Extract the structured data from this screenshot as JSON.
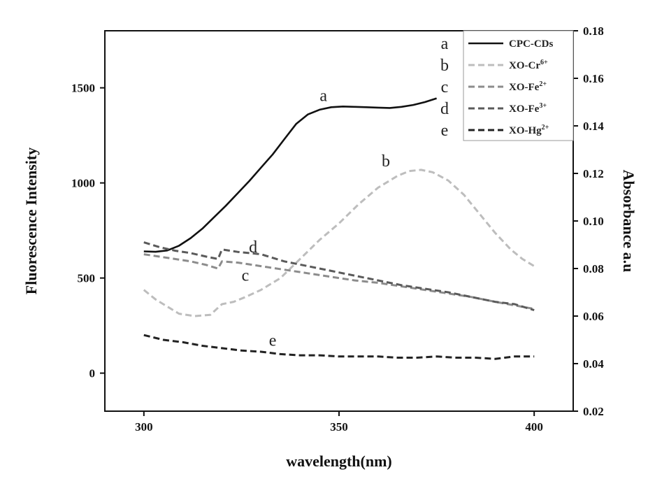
{
  "chart_data": {
    "type": "line",
    "title": "",
    "xlabel": "wavelength(nm)",
    "ylabel_left": "Fluorescence Intensity",
    "ylabel_right": "Absorbance a.u",
    "xlim": [
      290,
      410
    ],
    "ylim_left": [
      -200,
      1800
    ],
    "ylim_right": [
      0.02,
      0.18
    ],
    "x_ticks": [
      300,
      350,
      400
    ],
    "y_ticks_left": [
      0,
      500,
      1000,
      1500
    ],
    "y_ticks_right": [
      "0.02",
      "0.04",
      "0.06",
      "0.08",
      "0.10",
      "0.12",
      "0.14",
      "0.16",
      "0.18"
    ],
    "grid": false,
    "legend_position": "top-right",
    "series": [
      {
        "id": "a",
        "name": "CPC-CDs",
        "axis": "left",
        "style": "solid",
        "color": "#111111",
        "label_pos": [
          346,
          1430
        ],
        "points": [
          [
            300,
            640
          ],
          [
            303,
            638
          ],
          [
            306,
            645
          ],
          [
            309,
            670
          ],
          [
            312,
            710
          ],
          [
            315,
            760
          ],
          [
            318,
            820
          ],
          [
            321,
            880
          ],
          [
            324,
            945
          ],
          [
            327,
            1010
          ],
          [
            330,
            1080
          ],
          [
            333,
            1150
          ],
          [
            336,
            1230
          ],
          [
            339,
            1310
          ],
          [
            342,
            1360
          ],
          [
            345,
            1385
          ],
          [
            348,
            1398
          ],
          [
            351,
            1402
          ],
          [
            354,
            1400
          ],
          [
            357,
            1398
          ],
          [
            360,
            1396
          ],
          [
            363,
            1394
          ],
          [
            366,
            1400
          ],
          [
            369,
            1410
          ],
          [
            372,
            1425
          ],
          [
            375,
            1445
          ]
        ]
      },
      {
        "id": "b",
        "name": "XO-Cr6+",
        "axis": "right",
        "style": "dashed",
        "color": "#bdbdbd",
        "label_pos": [
          362,
          0.123
        ],
        "points": [
          [
            300,
            0.071
          ],
          [
            303,
            0.067
          ],
          [
            306,
            0.064
          ],
          [
            309,
            0.061
          ],
          [
            313,
            0.06
          ],
          [
            317,
            0.0605
          ],
          [
            320,
            0.065
          ],
          [
            323,
            0.066
          ],
          [
            326,
            0.068
          ],
          [
            330,
            0.071
          ],
          [
            335,
            0.076
          ],
          [
            340,
            0.084
          ],
          [
            345,
            0.092
          ],
          [
            350,
            0.099
          ],
          [
            355,
            0.107
          ],
          [
            360,
            0.114
          ],
          [
            365,
            0.119
          ],
          [
            368,
            0.121
          ],
          [
            371,
            0.1215
          ],
          [
            374,
            0.1205
          ],
          [
            378,
            0.117
          ],
          [
            382,
            0.111
          ],
          [
            386,
            0.103
          ],
          [
            390,
            0.095
          ],
          [
            394,
            0.088
          ],
          [
            397,
            0.084
          ],
          [
            400,
            0.081
          ]
        ]
      },
      {
        "id": "c",
        "name": "XO-Fe2+",
        "axis": "right",
        "style": "dashed",
        "color": "#8c8c8c",
        "label_pos": [
          326,
          0.0748
        ],
        "points": [
          [
            300,
            0.086
          ],
          [
            304,
            0.085
          ],
          [
            308,
            0.084
          ],
          [
            312,
            0.083
          ],
          [
            316,
            0.0815
          ],
          [
            319,
            0.08
          ],
          [
            320,
            0.083
          ],
          [
            324,
            0.0825
          ],
          [
            330,
            0.081
          ],
          [
            336,
            0.0795
          ],
          [
            342,
            0.078
          ],
          [
            348,
            0.0765
          ],
          [
            354,
            0.075
          ],
          [
            360,
            0.074
          ],
          [
            366,
            0.0725
          ],
          [
            372,
            0.071
          ],
          [
            378,
            0.0695
          ],
          [
            384,
            0.068
          ],
          [
            390,
            0.066
          ],
          [
            395,
            0.0645
          ],
          [
            400,
            0.063
          ]
        ]
      },
      {
        "id": "d",
        "name": "XO-Fe3+",
        "axis": "right",
        "style": "dashed",
        "color": "#5a5a5a",
        "label_pos": [
          328,
          0.0868
        ],
        "points": [
          [
            300,
            0.091
          ],
          [
            304,
            0.089
          ],
          [
            308,
            0.0875
          ],
          [
            312,
            0.0865
          ],
          [
            316,
            0.085
          ],
          [
            319,
            0.084
          ],
          [
            320,
            0.088
          ],
          [
            324,
            0.087
          ],
          [
            330,
            0.086
          ],
          [
            336,
            0.083
          ],
          [
            342,
            0.081
          ],
          [
            348,
            0.079
          ],
          [
            354,
            0.077
          ],
          [
            360,
            0.075
          ],
          [
            366,
            0.073
          ],
          [
            372,
            0.0715
          ],
          [
            378,
            0.07
          ],
          [
            384,
            0.068
          ],
          [
            390,
            0.066
          ],
          [
            395,
            0.065
          ],
          [
            400,
            0.0625
          ]
        ]
      },
      {
        "id": "e",
        "name": "XO-Hg2+",
        "axis": "right",
        "style": "dashed",
        "color": "#222222",
        "label_pos": [
          333,
          0.0475
        ],
        "points": [
          [
            300,
            0.052
          ],
          [
            305,
            0.05
          ],
          [
            310,
            0.049
          ],
          [
            315,
            0.0475
          ],
          [
            320,
            0.0465
          ],
          [
            325,
            0.0455
          ],
          [
            330,
            0.045
          ],
          [
            335,
            0.044
          ],
          [
            340,
            0.0435
          ],
          [
            345,
            0.0435
          ],
          [
            350,
            0.043
          ],
          [
            355,
            0.043
          ],
          [
            360,
            0.043
          ],
          [
            365,
            0.0425
          ],
          [
            370,
            0.0425
          ],
          [
            375,
            0.043
          ],
          [
            380,
            0.0425
          ],
          [
            385,
            0.0425
          ],
          [
            390,
            0.042
          ],
          [
            395,
            0.043
          ],
          [
            400,
            0.043
          ]
        ]
      }
    ],
    "legend": [
      {
        "letter": "a",
        "base": "CPC-CDs",
        "sup": ""
      },
      {
        "letter": "b",
        "base": "XO-Cr",
        "sup": "6+"
      },
      {
        "letter": "c",
        "base": "XO-Fe",
        "sup": "2+"
      },
      {
        "letter": "d",
        "base": "XO-Fe",
        "sup": "3+"
      },
      {
        "letter": "e",
        "base": "XO-Hg",
        "sup": "2+"
      }
    ]
  }
}
